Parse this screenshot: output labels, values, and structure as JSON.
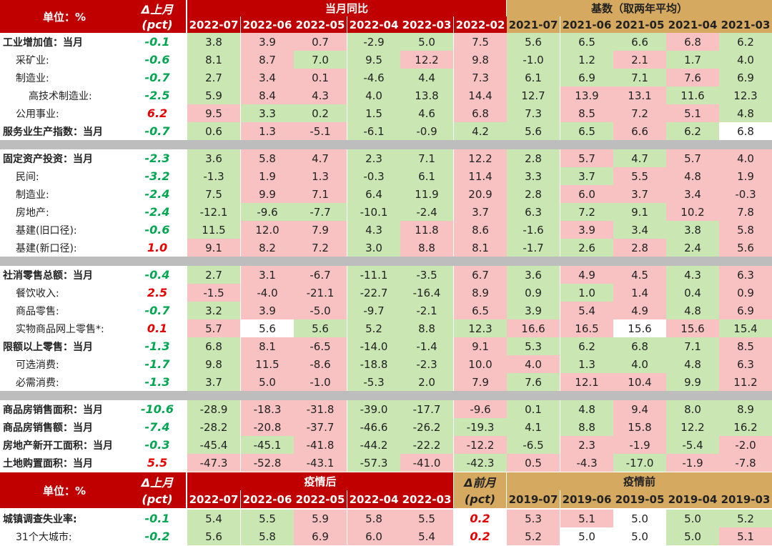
{
  "colors": {
    "pos": "#f8c2c2",
    "neg": "#c9e6b3",
    "neutral": "#ffffff",
    "delta_pos": "#e60000",
    "delta_neg": "#00a651",
    "hdr_red": "#c00000",
    "hdr_gold": "#d6a960"
  },
  "top": {
    "unit_label": "单位：%",
    "delta_label": "Δ上月",
    "delta_unit": "(pct)",
    "group_current": "当月同比",
    "group_base": "基数（取两年平均）",
    "current_cols": [
      "2022-07",
      "2022-06",
      "2022-05",
      "2022-04",
      "2022-03",
      "2022-02"
    ],
    "base_cols": [
      "2021-07",
      "2021-06",
      "2021-05",
      "2021-04",
      "2021-03"
    ]
  },
  "rows": [
    {
      "label": "工业增加值：当月",
      "bold": true,
      "indent": 0,
      "delta": "-0.1",
      "values": [
        "3.8",
        "3.9",
        "0.7",
        "-2.9",
        "5.0",
        "7.5",
        "5.6",
        "6.5",
        "6.6",
        "6.8",
        "6.2"
      ],
      "tones": [
        "g",
        "r",
        "r",
        "g",
        "g",
        "r",
        "g",
        "g",
        "g",
        "r",
        "g"
      ]
    },
    {
      "label": "采矿业:",
      "bold": false,
      "indent": 1,
      "delta": "-0.6",
      "values": [
        "8.1",
        "8.7",
        "7.0",
        "9.5",
        "12.2",
        "9.8",
        "-1.0",
        "1.2",
        "2.1",
        "1.7",
        "4.0"
      ],
      "tones": [
        "g",
        "r",
        "g",
        "g",
        "r",
        "r",
        "g",
        "g",
        "r",
        "g",
        "g"
      ]
    },
    {
      "label": "制造业:",
      "bold": false,
      "indent": 1,
      "delta": "-0.7",
      "values": [
        "2.7",
        "3.4",
        "0.1",
        "-4.6",
        "4.4",
        "7.3",
        "6.1",
        "6.9",
        "7.1",
        "7.6",
        "6.9"
      ],
      "tones": [
        "g",
        "r",
        "r",
        "g",
        "g",
        "r",
        "g",
        "g",
        "g",
        "r",
        "g"
      ]
    },
    {
      "label": "高技术制造业:",
      "bold": false,
      "indent": 2,
      "delta": "-2.5",
      "values": [
        "5.9",
        "8.4",
        "4.3",
        "4.0",
        "13.8",
        "14.4",
        "12.7",
        "13.9",
        "13.1",
        "11.6",
        "12.3"
      ],
      "tones": [
        "g",
        "r",
        "r",
        "g",
        "g",
        "r",
        "g",
        "r",
        "r",
        "g",
        "g"
      ]
    },
    {
      "label": "公用事业:",
      "bold": false,
      "indent": 1,
      "delta": "6.2",
      "values": [
        "9.5",
        "3.3",
        "0.2",
        "1.5",
        "4.6",
        "6.8",
        "7.3",
        "8.5",
        "7.2",
        "5.1",
        "4.8"
      ],
      "tones": [
        "r",
        "g",
        "g",
        "g",
        "g",
        "r",
        "g",
        "r",
        "r",
        "r",
        "g"
      ]
    },
    {
      "label": "服务业生产指数：当月",
      "bold": true,
      "indent": 0,
      "delta": "-0.7",
      "values": [
        "0.6",
        "1.3",
        "-5.1",
        "-6.1",
        "-0.9",
        "4.2",
        "5.6",
        "6.5",
        "6.6",
        "6.2",
        "6.8"
      ],
      "tones": [
        "g",
        "r",
        "r",
        "g",
        "g",
        "g",
        "g",
        "g",
        "r",
        "g",
        "w"
      ]
    },
    {
      "sep": true
    },
    {
      "label": "固定资产投资：当月",
      "bold": true,
      "indent": 0,
      "delta": "-2.3",
      "values": [
        "3.6",
        "5.8",
        "4.7",
        "2.3",
        "7.1",
        "12.2",
        "2.8",
        "5.7",
        "4.7",
        "5.7",
        "4.0"
      ],
      "tones": [
        "g",
        "r",
        "r",
        "g",
        "g",
        "r",
        "g",
        "r",
        "g",
        "r",
        "r"
      ]
    },
    {
      "label": "民间:",
      "bold": false,
      "indent": 1,
      "delta": "-3.2",
      "values": [
        "-1.3",
        "1.9",
        "1.3",
        "-0.3",
        "6.1",
        "11.4",
        "3.3",
        "3.7",
        "5.5",
        "4.8",
        "1.9"
      ],
      "tones": [
        "g",
        "r",
        "r",
        "g",
        "g",
        "r",
        "g",
        "g",
        "r",
        "r",
        "r"
      ]
    },
    {
      "label": "制造业:",
      "bold": false,
      "indent": 1,
      "delta": "-2.4",
      "values": [
        "7.5",
        "9.9",
        "7.1",
        "6.4",
        "11.9",
        "20.9",
        "2.8",
        "6.0",
        "3.7",
        "3.4",
        "-0.3"
      ],
      "tones": [
        "g",
        "r",
        "r",
        "g",
        "g",
        "r",
        "g",
        "r",
        "r",
        "r",
        "r"
      ]
    },
    {
      "label": "房地产:",
      "bold": false,
      "indent": 1,
      "delta": "-2.4",
      "values": [
        "-12.1",
        "-9.6",
        "-7.7",
        "-10.1",
        "-2.4",
        "3.7",
        "6.3",
        "7.2",
        "9.1",
        "10.2",
        "7.8"
      ],
      "tones": [
        "g",
        "g",
        "g",
        "g",
        "g",
        "r",
        "g",
        "g",
        "g",
        "r",
        "r"
      ]
    },
    {
      "label": "基建(旧口径):",
      "bold": false,
      "indent": 1,
      "delta": "-0.6",
      "values": [
        "11.5",
        "12.0",
        "7.9",
        "4.3",
        "11.8",
        "8.6",
        "-1.6",
        "3.9",
        "3.4",
        "3.8",
        "5.8"
      ],
      "tones": [
        "g",
        "r",
        "r",
        "g",
        "r",
        "r",
        "g",
        "r",
        "g",
        "g",
        "r"
      ]
    },
    {
      "label": "基建(新口径):",
      "bold": false,
      "indent": 1,
      "delta": "1.0",
      "values": [
        "9.1",
        "8.2",
        "7.2",
        "3.0",
        "8.8",
        "8.1",
        "-1.7",
        "2.6",
        "2.8",
        "2.4",
        "5.6"
      ],
      "tones": [
        "r",
        "r",
        "r",
        "g",
        "r",
        "r",
        "g",
        "g",
        "r",
        "g",
        "r"
      ]
    },
    {
      "sep": true
    },
    {
      "label": "社消零售总额：当月",
      "bold": true,
      "indent": 0,
      "delta": "-0.4",
      "values": [
        "2.7",
        "3.1",
        "-6.7",
        "-11.1",
        "-3.5",
        "6.7",
        "3.6",
        "4.9",
        "4.5",
        "4.3",
        "6.3"
      ],
      "tones": [
        "g",
        "r",
        "r",
        "g",
        "g",
        "r",
        "g",
        "r",
        "r",
        "g",
        "r"
      ]
    },
    {
      "label": "餐饮收入:",
      "bold": false,
      "indent": 1,
      "delta": "2.5",
      "values": [
        "-1.5",
        "-4.0",
        "-21.1",
        "-22.7",
        "-16.4",
        "8.9",
        "0.9",
        "1.0",
        "1.4",
        "0.4",
        "0.9"
      ],
      "tones": [
        "r",
        "r",
        "r",
        "g",
        "g",
        "r",
        "g",
        "g",
        "r",
        "g",
        "r"
      ]
    },
    {
      "label": "商品零售:",
      "bold": false,
      "indent": 1,
      "delta": "-0.7",
      "values": [
        "3.2",
        "3.9",
        "-5.0",
        "-9.7",
        "-2.1",
        "6.5",
        "3.9",
        "5.4",
        "4.9",
        "4.8",
        "6.9"
      ],
      "tones": [
        "g",
        "r",
        "r",
        "g",
        "g",
        "r",
        "g",
        "r",
        "r",
        "g",
        "r"
      ]
    },
    {
      "label": "实物商品网上零售*:",
      "bold": false,
      "indent": 1,
      "delta": "0.1",
      "values": [
        "5.7",
        "5.6",
        "5.6",
        "5.2",
        "8.8",
        "12.3",
        "16.6",
        "16.5",
        "15.6",
        "15.6",
        "15.4"
      ],
      "tones": [
        "r",
        "w",
        "g",
        "g",
        "g",
        "g",
        "r",
        "r",
        "w",
        "r",
        "g"
      ]
    },
    {
      "label": "限额以上零售：当月",
      "bold": true,
      "indent": 0,
      "delta": "-1.3",
      "values": [
        "6.8",
        "8.1",
        "-6.5",
        "-14.0",
        "-1.4",
        "9.1",
        "5.3",
        "6.2",
        "6.8",
        "7.1",
        "8.5"
      ],
      "tones": [
        "g",
        "r",
        "r",
        "g",
        "g",
        "r",
        "g",
        "g",
        "g",
        "g",
        "r"
      ]
    },
    {
      "label": "可选消费:",
      "bold": false,
      "indent": 1,
      "delta": "-1.7",
      "values": [
        "9.8",
        "11.5",
        "-8.6",
        "-18.8",
        "-2.3",
        "10.0",
        "4.0",
        "1.3",
        "4.0",
        "4.8",
        "6.3"
      ],
      "tones": [
        "g",
        "r",
        "r",
        "g",
        "g",
        "r",
        "r",
        "g",
        "g",
        "g",
        "r"
      ]
    },
    {
      "label": "必需消费:",
      "bold": false,
      "indent": 1,
      "delta": "-1.3",
      "values": [
        "3.7",
        "5.0",
        "-1.0",
        "-5.3",
        "2.0",
        "7.9",
        "7.6",
        "12.1",
        "10.4",
        "9.9",
        "11.2"
      ],
      "tones": [
        "g",
        "r",
        "r",
        "g",
        "g",
        "r",
        "g",
        "r",
        "r",
        "g",
        "r"
      ]
    },
    {
      "sep": true
    },
    {
      "label": "商品房销售面积：当月",
      "bold": true,
      "indent": 0,
      "delta": "-10.6",
      "values": [
        "-28.9",
        "-18.3",
        "-31.8",
        "-39.0",
        "-17.7",
        "-9.6",
        "0.1",
        "4.8",
        "9.4",
        "8.0",
        "8.9"
      ],
      "tones": [
        "g",
        "r",
        "r",
        "g",
        "g",
        "r",
        "g",
        "g",
        "r",
        "g",
        "g"
      ]
    },
    {
      "label": "商品房销售额：当月",
      "bold": true,
      "indent": 0,
      "delta": "-7.4",
      "values": [
        "-28.2",
        "-20.8",
        "-37.7",
        "-46.6",
        "-26.2",
        "-19.3",
        "4.1",
        "8.8",
        "15.8",
        "12.2",
        "16.2"
      ],
      "tones": [
        "g",
        "r",
        "r",
        "g",
        "g",
        "g",
        "g",
        "g",
        "r",
        "g",
        "g"
      ]
    },
    {
      "label": "房地产新开工面积：当月",
      "bold": true,
      "indent": 0,
      "delta": "-0.3",
      "values": [
        "-45.4",
        "-45.1",
        "-41.8",
        "-44.2",
        "-22.2",
        "-12.2",
        "-6.5",
        "2.3",
        "-1.9",
        "-5.4",
        "-2.0"
      ],
      "tones": [
        "g",
        "g",
        "r",
        "g",
        "g",
        "r",
        "g",
        "r",
        "r",
        "g",
        "r"
      ]
    },
    {
      "label": "土地购置面积：当月",
      "bold": true,
      "indent": 0,
      "delta": "5.5",
      "values": [
        "-47.3",
        "-52.8",
        "-43.1",
        "-57.3",
        "-41.0",
        "-42.3",
        "0.5",
        "-4.3",
        "-17.0",
        "-1.9",
        "-7.8"
      ],
      "tones": [
        "r",
        "r",
        "r",
        "g",
        "r",
        "g",
        "r",
        "r",
        "g",
        "r",
        "r"
      ]
    }
  ],
  "bottom": {
    "unit_label": "单位：%",
    "delta_label": "Δ上月",
    "delta_unit": "(pct)",
    "group_after": "疫情后",
    "delta2_label": "Δ前月",
    "delta2_unit": "(pct)",
    "group_before": "疫情前",
    "after_cols": [
      "2022-07",
      "2022-06",
      "2022-05",
      "2022-04",
      "2022-03"
    ],
    "before_cols": [
      "2019-07",
      "2019-06",
      "2019-05",
      "2019-04",
      "2019-03"
    ],
    "rows": [
      {
        "label": "城镇调查失业率:",
        "bold": true,
        "indent": 0,
        "delta": "-0.1",
        "after": [
          "5.4",
          "5.5",
          "5.9",
          "5.8",
          "5.5"
        ],
        "after_tones": [
          "g",
          "g",
          "r",
          "r",
          "r"
        ],
        "delta2": "0.2",
        "before": [
          "5.3",
          "5.1",
          "5.0",
          "5.0",
          "5.2"
        ],
        "before_tones": [
          "r",
          "r",
          "w",
          "g",
          "g"
        ]
      },
      {
        "label": "31个大城市:",
        "bold": false,
        "indent": 1,
        "delta": "-0.2",
        "after": [
          "5.6",
          "5.8",
          "6.9",
          "6.0",
          "5.4"
        ],
        "after_tones": [
          "g",
          "g",
          "r",
          "r",
          "r"
        ],
        "delta2": "0.2",
        "before": [
          "5.2",
          "5.0",
          "5.0",
          "5.0",
          "5.1"
        ],
        "before_tones": [
          "r",
          "w",
          "w",
          "g",
          "r"
        ]
      }
    ]
  }
}
